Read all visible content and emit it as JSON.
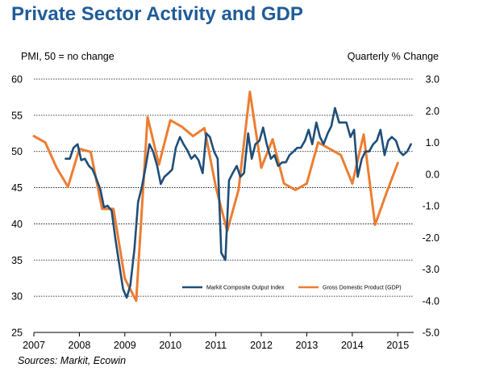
{
  "chart_data": {
    "type": "line",
    "title": "Private Sector Activity and GDP",
    "ylabel_left": "PMI, 50 = no change",
    "ylabel_right": "Quarterly % Change",
    "source": "Sources: Markit, Ecowin",
    "x_ticks": [
      "2007",
      "2008",
      "2009",
      "2010",
      "2011",
      "2012",
      "2013",
      "2014",
      "2015"
    ],
    "xlim": [
      2007.0,
      2015.35
    ],
    "y_left": {
      "lim": [
        25,
        60
      ],
      "ticks": [
        "25",
        "30",
        "35",
        "40",
        "45",
        "50",
        "55",
        "60"
      ]
    },
    "y_right": {
      "lim": [
        -5.0,
        3.0
      ],
      "ticks": [
        "-5.0",
        "-4.0",
        "-3.0",
        "-2.0",
        "-1.0",
        "0.0",
        "1.0",
        "2.0",
        "3.0"
      ]
    },
    "grid": "horizontal",
    "legend_position": "bottom-right",
    "colors": {
      "title": "#1f5c99",
      "pmi": "#1f4e79",
      "gdp": "#ed7d31",
      "grid": "#000000"
    },
    "series": [
      {
        "name": "Markit Composite Output Index",
        "axis": "left",
        "x": [
          2007.7,
          2007.79,
          2007.87,
          2007.96,
          2008.04,
          2008.12,
          2008.21,
          2008.29,
          2008.37,
          2008.46,
          2008.54,
          2008.62,
          2008.71,
          2008.79,
          2008.87,
          2008.96,
          2009.04,
          2009.12,
          2009.21,
          2009.29,
          2009.37,
          2009.46,
          2009.54,
          2009.62,
          2009.71,
          2009.79,
          2009.87,
          2009.96,
          2010.04,
          2010.12,
          2010.21,
          2010.29,
          2010.37,
          2010.46,
          2010.54,
          2010.62,
          2010.71,
          2010.79,
          2010.87,
          2010.96,
          2011.04,
          2011.12,
          2011.21,
          2011.29,
          2011.37,
          2011.46,
          2011.54,
          2011.62,
          2011.71,
          2011.79,
          2011.87,
          2011.96,
          2012.04,
          2012.12,
          2012.21,
          2012.29,
          2012.37,
          2012.46,
          2012.54,
          2012.62,
          2012.71,
          2012.79,
          2012.87,
          2012.96,
          2013.04,
          2013.12,
          2013.21,
          2013.29,
          2013.37,
          2013.46,
          2013.54,
          2013.62,
          2013.71,
          2013.79,
          2013.87,
          2013.96,
          2014.04,
          2014.12,
          2014.21,
          2014.29,
          2014.37,
          2014.46,
          2014.54,
          2014.62,
          2014.71,
          2014.79,
          2014.87,
          2014.96,
          2015.04,
          2015.12,
          2015.21,
          2015.29
        ],
        "values": [
          49.0,
          49.0,
          50.5,
          51.0,
          48.8,
          49.0,
          48.0,
          47.5,
          46.3,
          44.8,
          42.3,
          42.5,
          41.8,
          38.0,
          34.7,
          31.0,
          29.8,
          31.5,
          36.5,
          43.0,
          45.0,
          48.0,
          51.0,
          50.0,
          48.0,
          45.5,
          46.5,
          47.0,
          47.5,
          50.5,
          52.0,
          51.0,
          50.2,
          49.0,
          49.5,
          48.8,
          47.0,
          52.5,
          52.0,
          50.0,
          49.0,
          36.0,
          35.0,
          46.0,
          47.0,
          48.0,
          46.5,
          47.0,
          52.5,
          49.0,
          51.0,
          51.5,
          53.3,
          51.0,
          49.0,
          49.5,
          48.0,
          48.5,
          48.5,
          49.5,
          50.0,
          50.5,
          50.5,
          51.5,
          53.0,
          51.0,
          54.0,
          52.0,
          51.0,
          52.5,
          53.5,
          56.0,
          54.0,
          54.0,
          54.0,
          52.0,
          53.0,
          46.5,
          49.0,
          50.0,
          50.0,
          51.0,
          51.5,
          53.0,
          49.5,
          51.5,
          52.0,
          51.5,
          50.0,
          49.5,
          50.0,
          51.0
        ]
      },
      {
        "name": "Gross Domestic Product (GDP)",
        "axis": "right",
        "x": [
          2007.0,
          2007.25,
          2007.5,
          2007.75,
          2008.0,
          2008.25,
          2008.5,
          2008.75,
          2009.0,
          2009.25,
          2009.5,
          2009.75,
          2010.0,
          2010.25,
          2010.5,
          2010.75,
          2011.0,
          2011.25,
          2011.5,
          2011.75,
          2012.0,
          2012.25,
          2012.5,
          2012.75,
          2013.0,
          2013.25,
          2013.5,
          2013.75,
          2014.0,
          2014.25,
          2014.5,
          2014.75,
          2015.0
        ],
        "values": [
          1.2,
          1.0,
          0.2,
          -0.4,
          0.8,
          0.7,
          -1.1,
          -1.1,
          -3.3,
          -4.0,
          1.8,
          0.3,
          1.7,
          1.5,
          1.2,
          1.45,
          -0.4,
          -1.8,
          -0.5,
          2.6,
          0.2,
          1.1,
          -0.3,
          -0.5,
          -0.3,
          1.0,
          0.8,
          0.6,
          -0.3,
          1.25,
          -1.6,
          -0.6,
          0.35
        ]
      }
    ]
  }
}
